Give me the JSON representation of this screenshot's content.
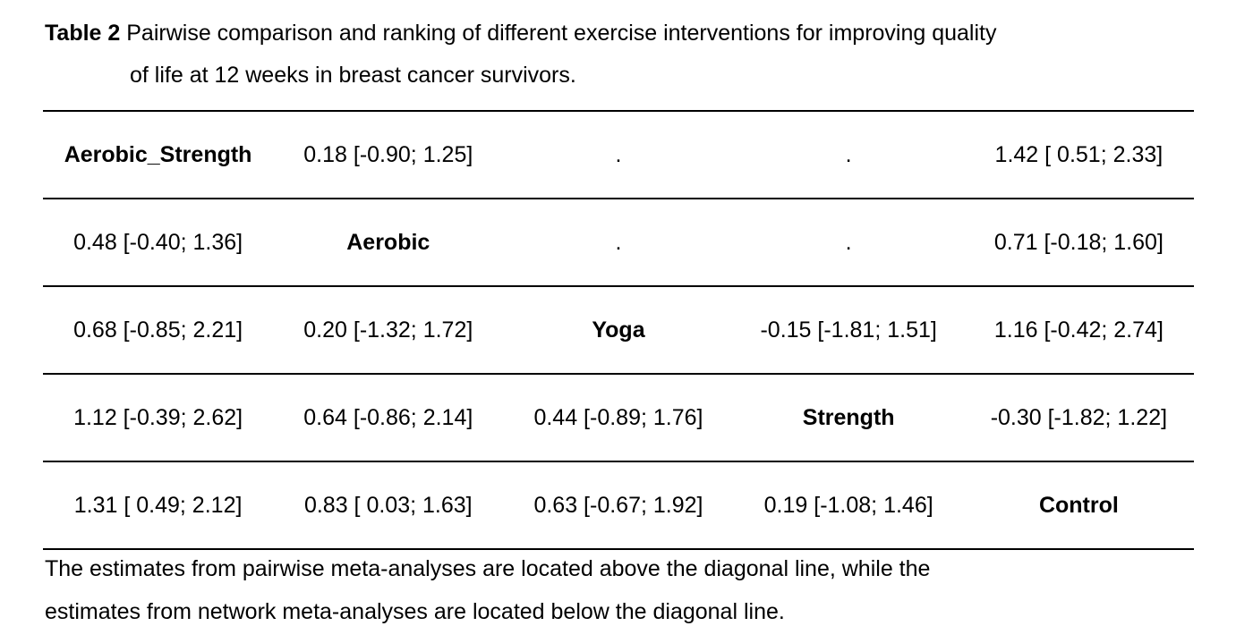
{
  "caption": {
    "label": "Table 2",
    "line1": "Pairwise comparison and ranking of different exercise interventions for improving quality",
    "line2": "of life at 12 weeks in breast cancer survivors."
  },
  "table": {
    "rows": [
      [
        "Aerobic_Strength",
        "0.18 [-0.90; 1.25]",
        ".",
        ".",
        "1.42 [ 0.51; 2.33]"
      ],
      [
        "0.48 [-0.40; 1.36]",
        "Aerobic",
        ".",
        ".",
        "0.71 [-0.18; 1.60]"
      ],
      [
        "0.68 [-0.85; 2.21]",
        "0.20 [-1.32; 1.72]",
        "Yoga",
        "-0.15 [-1.81; 1.51]",
        "1.16 [-0.42; 2.74]"
      ],
      [
        "1.12 [-0.39; 2.62]",
        "0.64 [-0.86; 2.14]",
        "0.44 [-0.89; 1.76]",
        "Strength",
        "-0.30 [-1.82; 1.22]"
      ],
      [
        "1.31 [ 0.49; 2.12]",
        "0.83 [ 0.03; 1.63]",
        "0.63 [-0.67; 1.92]",
        "0.19 [-1.08; 1.46]",
        "Control"
      ]
    ]
  },
  "footnote": {
    "line1": "The estimates from pairwise meta-analyses are located above the diagonal line, while the",
    "line2": "estimates from network meta-analyses are located below the diagonal line."
  }
}
